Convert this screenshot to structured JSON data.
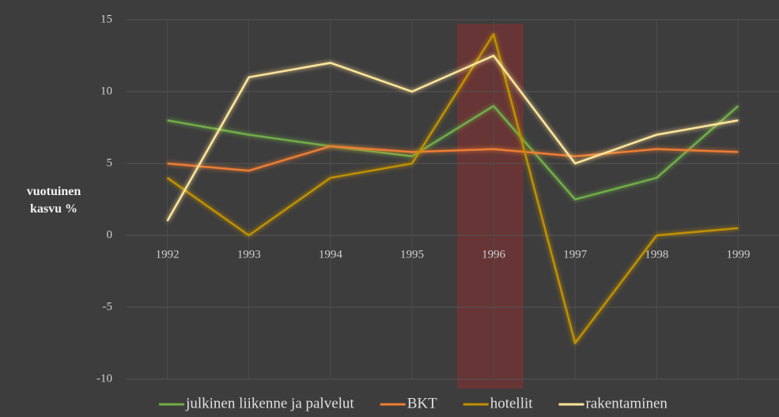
{
  "chart_data": {
    "type": "line",
    "y_label": "vuotuinen kasvu %",
    "categories": [
      "1992",
      "1993",
      "1994",
      "1995",
      "1996",
      "1997",
      "1998",
      "1999"
    ],
    "series": [
      {
        "name": "julkinen liikenne ja palvelut",
        "color": "#70ad47",
        "values": [
          8,
          7,
          6.2,
          5.5,
          9,
          2.5,
          4,
          9
        ]
      },
      {
        "name": "BKT",
        "color": "#ed7d31",
        "values": [
          5,
          4.5,
          6.2,
          5.8,
          6,
          5.5,
          6,
          5.8
        ]
      },
      {
        "name": "hotellit",
        "color": "#bf9000",
        "values": [
          4,
          0,
          4,
          5,
          14,
          -7.5,
          0,
          0.5
        ]
      },
      {
        "name": "rakentaminen",
        "color": "#ffe699",
        "values": [
          1,
          11,
          12,
          10,
          12.5,
          5,
          7,
          8
        ]
      }
    ],
    "ylim": [
      -10,
      15
    ],
    "yticks": [
      -10,
      -5,
      0,
      5,
      10,
      15
    ],
    "grid": true,
    "legend": "bottom"
  }
}
